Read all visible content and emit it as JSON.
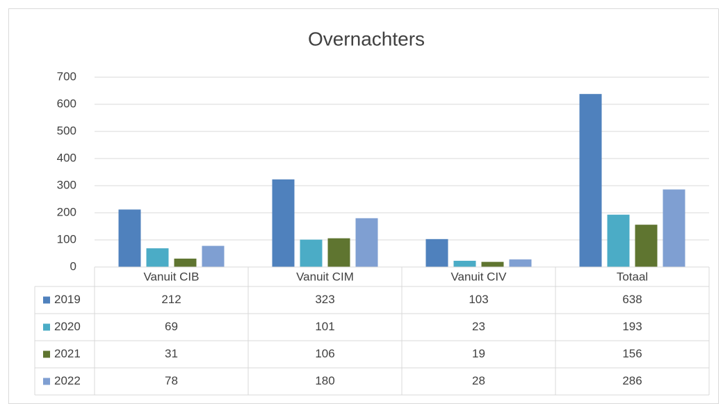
{
  "chart_data": {
    "type": "bar",
    "title": "Overnachters",
    "categories": [
      "Vanuit CIB",
      "Vanuit CIM",
      "Vanuit CIV",
      "Totaal"
    ],
    "series": [
      {
        "name": "2019",
        "color": "#4f81bd",
        "values": [
          212,
          323,
          103,
          638
        ]
      },
      {
        "name": "2020",
        "color": "#4bacc6",
        "values": [
          69,
          101,
          23,
          193
        ]
      },
      {
        "name": "2021",
        "color": "#5f7530",
        "values": [
          31,
          106,
          19,
          156
        ]
      },
      {
        "name": "2022",
        "color": "#7f9fd2",
        "values": [
          78,
          180,
          28,
          286
        ]
      }
    ],
    "ylim": [
      0,
      700
    ],
    "yticks": [
      0,
      100,
      200,
      300,
      400,
      500,
      600,
      700
    ],
    "grid": true,
    "data_table": true
  }
}
